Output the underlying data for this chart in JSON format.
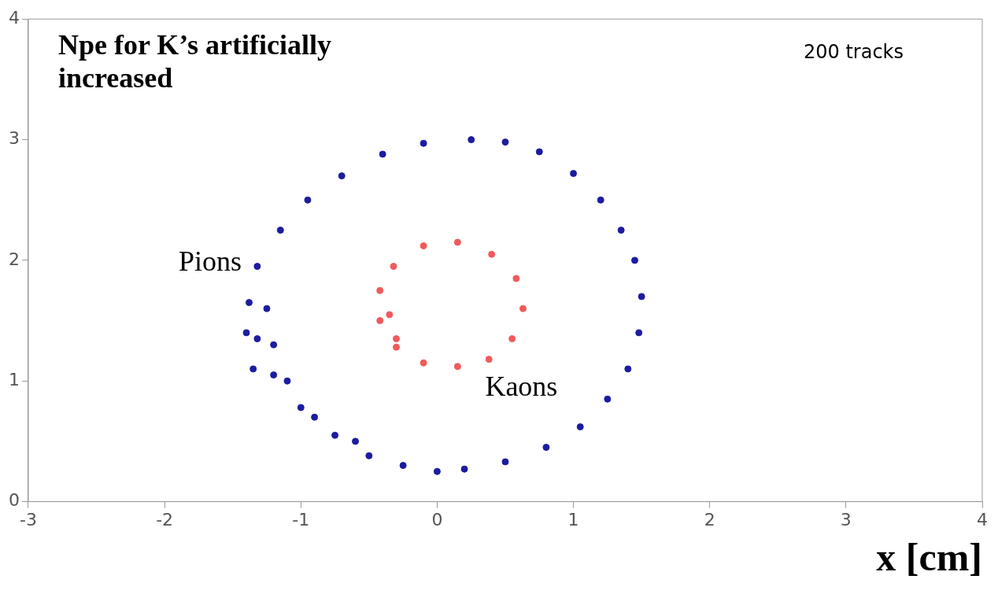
{
  "chart_data": {
    "type": "scatter",
    "title": "Npe for K’s artificially increased",
    "xlabel": "x [cm]",
    "annotations": [
      "200 tracks"
    ],
    "xlim": [
      -3,
      4
    ],
    "xticks": [
      -3,
      -2,
      -1,
      0,
      1,
      2,
      3,
      4
    ],
    "ylim": [
      0,
      4
    ],
    "yticks": [
      0,
      1,
      2,
      3,
      4
    ],
    "grid": false,
    "legend": false,
    "marker": "circle",
    "series": [
      {
        "name": "Pions",
        "color": "#1c1ca0",
        "x": [
          0.25,
          0.5,
          0.75,
          1.0,
          1.2,
          1.35,
          1.45,
          1.5,
          1.48,
          1.4,
          1.25,
          1.05,
          0.8,
          0.5,
          0.2,
          0,
          -0.25,
          -0.5,
          -0.75,
          -1.0,
          -1.2,
          -1.32,
          -1.38,
          -1.32,
          -1.15,
          -0.95,
          -0.7,
          -0.4,
          -0.1,
          -1.25,
          -1.2,
          -1.1,
          -0.9,
          -0.6,
          -1.4,
          -1.35
        ],
        "values": [
          3.0,
          2.98,
          2.9,
          2.72,
          2.5,
          2.25,
          2.0,
          1.7,
          1.4,
          1.1,
          0.85,
          0.62,
          0.45,
          0.33,
          0.27,
          0.25,
          0.3,
          0.38,
          0.55,
          0.78,
          1.05,
          1.35,
          1.65,
          1.95,
          2.25,
          2.5,
          2.7,
          2.88,
          2.97,
          1.6,
          1.3,
          1.0,
          0.7,
          0.5,
          1.4,
          1.1
        ]
      },
      {
        "name": "Kaons",
        "color": "#f05a5a",
        "x": [
          0.15,
          0.4,
          0.58,
          0.63,
          0.55,
          0.38,
          0.15,
          -0.1,
          -0.3,
          -0.42,
          -0.42,
          -0.32,
          -0.1,
          -0.35,
          -0.3
        ],
        "values": [
          2.15,
          2.05,
          1.85,
          1.6,
          1.35,
          1.18,
          1.12,
          1.15,
          1.28,
          1.5,
          1.75,
          1.95,
          2.12,
          1.55,
          1.35
        ]
      }
    ]
  }
}
